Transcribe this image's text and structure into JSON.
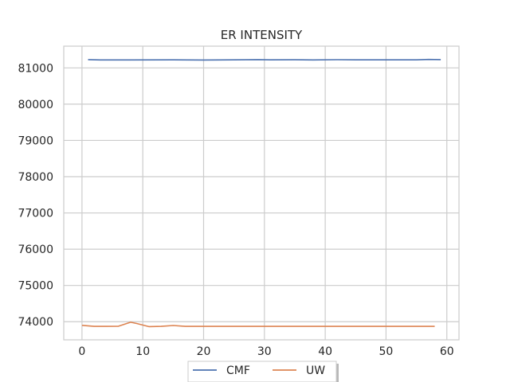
{
  "chart_data": {
    "type": "line",
    "title": "ER INTENSITY",
    "xlabel": "",
    "ylabel": "",
    "xlim": [
      -3,
      62
    ],
    "ylim": [
      73500,
      81600
    ],
    "xticks": [
      0,
      10,
      20,
      30,
      40,
      50,
      60
    ],
    "yticks": [
      74000,
      75000,
      76000,
      77000,
      78000,
      79000,
      80000,
      81000
    ],
    "grid": true,
    "legend_position": "bottom-center",
    "series": [
      {
        "name": "CMF",
        "color": "#4c72b0",
        "points": [
          [
            1,
            81230
          ],
          [
            3,
            81220
          ],
          [
            8,
            81220
          ],
          [
            15,
            81222
          ],
          [
            20,
            81218
          ],
          [
            25,
            81222
          ],
          [
            29,
            81228
          ],
          [
            31,
            81222
          ],
          [
            35,
            81224
          ],
          [
            38,
            81220
          ],
          [
            42,
            81226
          ],
          [
            45,
            81222
          ],
          [
            50,
            81222
          ],
          [
            55,
            81222
          ],
          [
            57,
            81234
          ],
          [
            59,
            81228
          ]
        ]
      },
      {
        "name": "UW",
        "color": "#dd8452",
        "points": [
          [
            0,
            73900
          ],
          [
            2,
            73870
          ],
          [
            4,
            73870
          ],
          [
            6,
            73875
          ],
          [
            8,
            73985
          ],
          [
            9,
            73950
          ],
          [
            11,
            73865
          ],
          [
            13,
            73870
          ],
          [
            15,
            73895
          ],
          [
            17,
            73870
          ],
          [
            20,
            73870
          ],
          [
            25,
            73872
          ],
          [
            30,
            73870
          ],
          [
            35,
            73872
          ],
          [
            40,
            73870
          ],
          [
            45,
            73870
          ],
          [
            50,
            73870
          ],
          [
            55,
            73870
          ],
          [
            58,
            73870
          ]
        ]
      }
    ]
  }
}
